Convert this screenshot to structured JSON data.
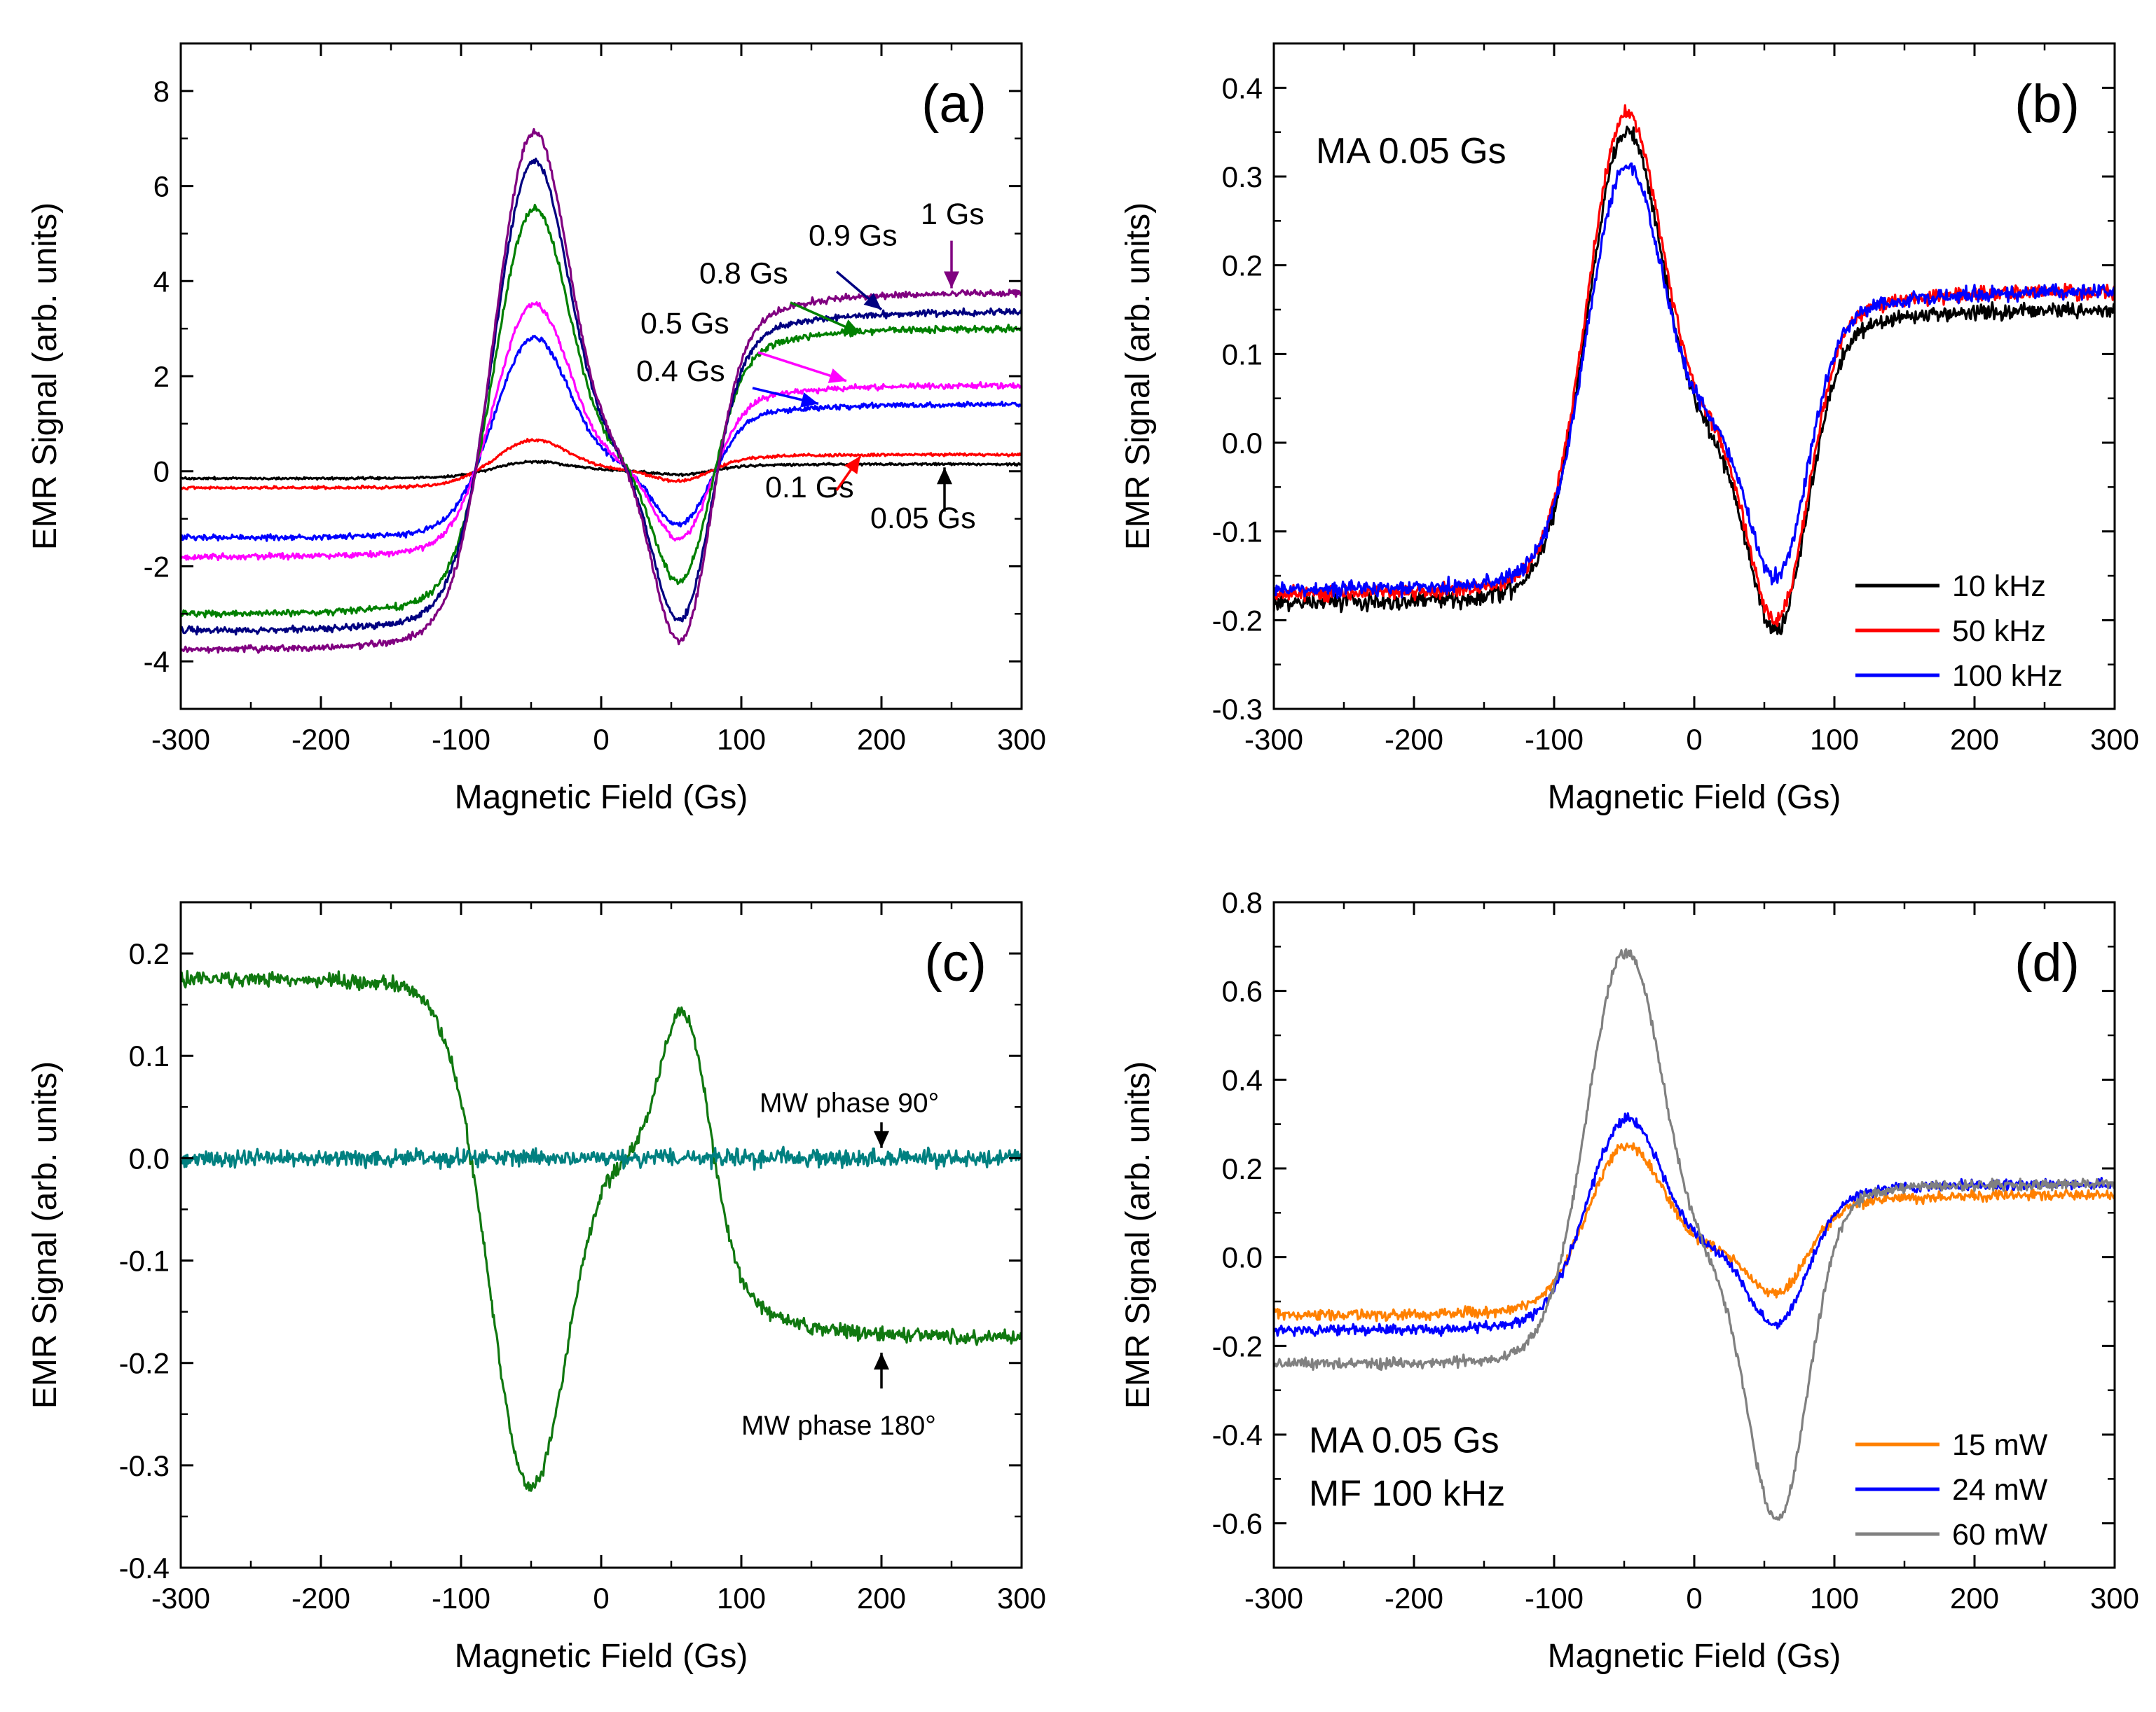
{
  "chart_data": [
    {
      "id": "a",
      "type": "line",
      "panel_label": "(a)",
      "xlabel": "Magnetic Field (Gs)",
      "ylabel": "EMR Signal (arb. units)",
      "xlim": [
        -300,
        300
      ],
      "ylim": [
        -5,
        9
      ],
      "xticks": [
        -300,
        -200,
        -100,
        0,
        100,
        200,
        300
      ],
      "xtick_labels": [
        "-300",
        "-200",
        "-100",
        "0",
        "100",
        "200",
        "300"
      ],
      "yticks": [
        -4,
        -2,
        0,
        2,
        4,
        6,
        8
      ],
      "ytick_labels": [
        "-4",
        "-2",
        "0",
        "2",
        "4",
        "6",
        "8"
      ],
      "model": {
        "x0": -300,
        "xc": 5,
        "wPk": 0.03,
        "wTr": 0.03,
        "xp": -50,
        "xt": 58,
        "xd": 20
      },
      "series": [
        {
          "name": "0.05 Gs",
          "color": "#000000",
          "base": 0.15,
          "peak": 0.2,
          "trough": -0.07,
          "noise": 0.02
        },
        {
          "name": "0.1 Gs",
          "color": "#ff0000",
          "base": 0.35,
          "peak": 0.65,
          "trough": -0.2,
          "noise": 0.025
        },
        {
          "name": "0.4 Gs",
          "color": "#0000ff",
          "base": 1.4,
          "peak": 2.8,
          "trough": -1.1,
          "noise": 0.05
        },
        {
          "name": "0.5 Gs",
          "color": "#ff00ff",
          "base": 1.8,
          "peak": 3.5,
          "trough": -1.4,
          "noise": 0.05
        },
        {
          "name": "0.8 Gs",
          "color": "#008000",
          "base": 3.0,
          "peak": 5.5,
          "trough": -2.3,
          "noise": 0.06
        },
        {
          "name": "0.9 Gs",
          "color": "#000080",
          "base": 3.35,
          "peak": 6.5,
          "trough": -3.1,
          "noise": 0.06
        },
        {
          "name": "1 Gs",
          "color": "#800080",
          "base": 3.75,
          "peak": 7.1,
          "trough": -3.55,
          "noise": 0.06
        }
      ],
      "annotations": [
        {
          "text": "1 Gs",
          "x": 228,
          "y": 5.2,
          "color": "#800080",
          "ax": 250,
          "ay": 4.85,
          "bx": 250,
          "by": 3.85
        },
        {
          "text": "0.9 Gs",
          "x": 148,
          "y": 4.75,
          "color": "#000080",
          "ax": 168,
          "ay": 4.2,
          "bx": 200,
          "by": 3.4
        },
        {
          "text": "0.8 Gs",
          "x": 70,
          "y": 3.95,
          "color": "#008000",
          "ax": 135,
          "ay": 3.55,
          "bx": 185,
          "by": 2.9
        },
        {
          "text": "0.5 Gs",
          "x": 28,
          "y": 2.9,
          "color": "#ff00ff",
          "ax": 112,
          "ay": 2.5,
          "bx": 175,
          "by": 1.9
        },
        {
          "text": "0.4 Gs",
          "x": 25,
          "y": 1.9,
          "color": "#0000ff",
          "ax": 108,
          "ay": 1.75,
          "bx": 155,
          "by": 1.42
        },
        {
          "text": "0.1 Gs",
          "x": 117,
          "y": -0.55,
          "color": "#ff0000",
          "ax": 168,
          "ay": -0.4,
          "bx": 185,
          "by": 0.32
        },
        {
          "text": "0.05 Gs",
          "x": 192,
          "y": -1.2,
          "color": "#000000",
          "ax": 245,
          "ay": -0.85,
          "bx": 245,
          "by": 0.08
        }
      ]
    },
    {
      "id": "b",
      "type": "line",
      "panel_label": "(b)",
      "xlabel": "Magnetic Field (Gs)",
      "ylabel": "EMR Signal (arb. units)",
      "xlim": [
        -300,
        300
      ],
      "ylim": [
        -0.3,
        0.45
      ],
      "xticks": [
        -300,
        -200,
        -100,
        0,
        100,
        200,
        300
      ],
      "xtick_labels": [
        "-300",
        "-200",
        "-100",
        "0",
        "100",
        "200",
        "300"
      ],
      "yticks": [
        -0.3,
        -0.2,
        -0.1,
        0.0,
        0.1,
        0.2,
        0.3,
        0.4
      ],
      "ytick_labels": [
        "-0.3",
        "-0.2",
        "-0.1",
        "0.0",
        "0.1",
        "0.2",
        "0.3",
        "0.4"
      ],
      "model": {
        "x0": -300,
        "xc": 5,
        "wPk": 0.03,
        "wTr": 0.03,
        "xp": -50,
        "xt": 60,
        "xd": 5
      },
      "series": [
        {
          "name": "10 kHz",
          "color": "#000000",
          "base": 0.18,
          "right": 0.15,
          "peak": 0.35,
          "trough": -0.21,
          "noise": 0.008
        },
        {
          "name": "50 kHz",
          "color": "#ff0000",
          "base": 0.17,
          "right": 0.17,
          "peak": 0.37,
          "trough": -0.2,
          "noise": 0.007
        },
        {
          "name": "100 kHz",
          "color": "#0000ff",
          "base": 0.165,
          "right": 0.17,
          "peak": 0.31,
          "trough": -0.15,
          "noise": 0.007
        }
      ],
      "annotations": [
        {
          "text": "MA 0.05 Gs",
          "x": -270,
          "y": 0.315
        }
      ],
      "legend": {
        "position": "lower-right"
      }
    },
    {
      "id": "c",
      "type": "line",
      "panel_label": "(c)",
      "xlabel": "Magnetic Field (Gs)",
      "ylabel": "EMR Signal (arb. units)",
      "xlim": [
        -300,
        300
      ],
      "ylim": [
        -0.4,
        0.25
      ],
      "xticks": [
        -300,
        -200,
        -100,
        0,
        100,
        200,
        300
      ],
      "xtick_labels": [
        "-300",
        "-200",
        "-100",
        "0",
        "100",
        "200",
        "300"
      ],
      "yticks": [
        -0.4,
        -0.3,
        -0.2,
        -0.1,
        0.0,
        0.1,
        0.2
      ],
      "ytick_labels": [
        "-0.4",
        "-0.3",
        "-0.2",
        "-0.1",
        "0.0",
        "0.1",
        "0.2"
      ],
      "model": {
        "x0": -300,
        "xc": 20,
        "wPk": 0.03,
        "wTr": 0.03,
        "xp": 60,
        "xt": -52,
        "xd": 25
      },
      "series": [
        {
          "name": "MW phase 180°",
          "color": "#107810",
          "base": 0.175,
          "right": 0.175,
          "peak": 0.14,
          "trough": -0.32,
          "noise": 0.006,
          "invert": true
        },
        {
          "name": "MW phase 90°",
          "color": "#008080",
          "flat": 0.0,
          "noise": 0.007
        }
      ],
      "annotations": [
        {
          "text": "MW phase 90°",
          "x": 113,
          "y": 0.045,
          "ax": 200,
          "ay": 0.035,
          "bx": 200,
          "by": 0.01
        },
        {
          "text": "MW phase 180°",
          "x": 100,
          "y": -0.27,
          "ax": 200,
          "ay": -0.225,
          "bx": 200,
          "by": -0.19
        }
      ]
    },
    {
      "id": "d",
      "type": "line",
      "panel_label": "(d)",
      "xlabel": "Magnetic Field (Gs)",
      "ylabel": "EMR Signal (arb. units)",
      "xlim": [
        -300,
        300
      ],
      "ylim": [
        -0.7,
        0.8
      ],
      "xticks": [
        -300,
        -200,
        -100,
        0,
        100,
        200,
        300
      ],
      "xtick_labels": [
        "-300",
        "-200",
        "-100",
        "0",
        "100",
        "200",
        "300"
      ],
      "yticks": [
        -0.6,
        -0.4,
        -0.2,
        0.0,
        0.2,
        0.4,
        0.6,
        0.8
      ],
      "ytick_labels": [
        "-0.6",
        "-0.4",
        "-0.2",
        "0.0",
        "0.2",
        "0.4",
        "0.6",
        "0.8"
      ],
      "model": {
        "x0": -300,
        "xc": 5,
        "wPk": 0.03,
        "wTr": 0.03,
        "xp": -50,
        "xt": 60,
        "xd": 5
      },
      "series": [
        {
          "name": "15 mW",
          "color": "#ff8000",
          "base": 0.13,
          "right": 0.14,
          "peak": 0.25,
          "trough": -0.08,
          "noise": 0.01
        },
        {
          "name": "24 mW",
          "color": "#0000ff",
          "base": 0.165,
          "right": 0.165,
          "peak": 0.31,
          "trough": -0.15,
          "noise": 0.01
        },
        {
          "name": "60 mW",
          "color": "#808080",
          "base": 0.24,
          "right": 0.165,
          "peak": 0.69,
          "trough": -0.59,
          "noise": 0.01
        }
      ],
      "annotations": [
        {
          "text": "MA 0.05 Gs",
          "x": -275,
          "y": -0.44
        },
        {
          "text": "MF 100 kHz",
          "x": -275,
          "y": -0.56
        }
      ],
      "legend": {
        "position": "lower-right"
      }
    }
  ]
}
